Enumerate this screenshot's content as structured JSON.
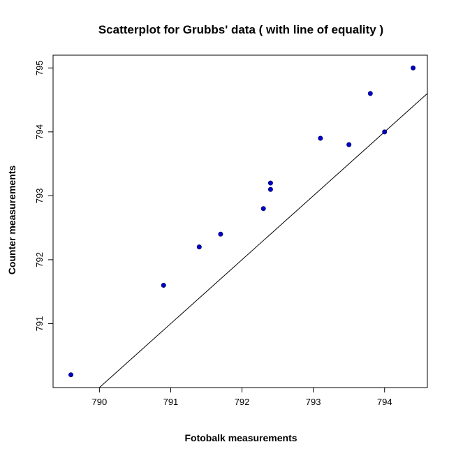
{
  "chart_data": {
    "type": "scatter",
    "title": "Scatterplot for Grubbs' data ( with line of equality )",
    "xlabel": "Fotobalk measurements",
    "ylabel": "Counter measurements",
    "xlim": [
      789.35,
      794.6
    ],
    "ylim": [
      790.0,
      795.2
    ],
    "xticks": [
      "790",
      "791",
      "792",
      "793",
      "794"
    ],
    "yticks": [
      "791",
      "792",
      "793",
      "794",
      "795"
    ],
    "grid": false,
    "legend": "none",
    "reference_line": "y = x",
    "point_color": "#0000cc",
    "x": [
      789.6,
      790.9,
      791.4,
      791.7,
      792.3,
      792.4,
      792.4,
      793.1,
      793.5,
      793.8,
      794.0,
      794.4
    ],
    "y": [
      790.2,
      791.6,
      792.2,
      792.4,
      792.8,
      793.1,
      793.2,
      793.9,
      793.8,
      794.6,
      794.0,
      795.0
    ]
  }
}
